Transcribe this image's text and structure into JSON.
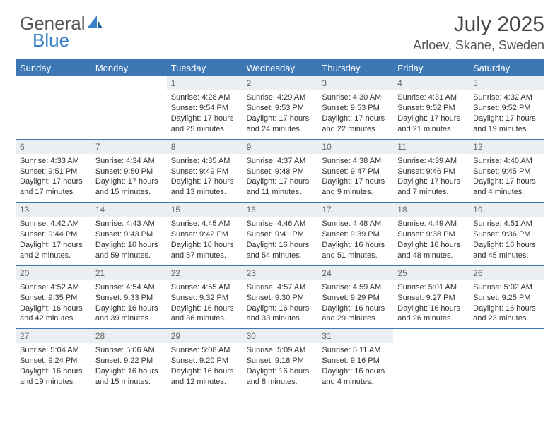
{
  "brand": {
    "word1": "General",
    "word2": "Blue"
  },
  "header": {
    "title": "July 2025",
    "location": "Arloev, Skane, Sweden"
  },
  "colors": {
    "blue": "#3e78b4",
    "logoBlue": "#3a7fc9",
    "dayNumBg": "#eceff1",
    "dayNumText": "#666666",
    "text": "#333333",
    "headerText": "#444444"
  },
  "dayLabels": [
    "Sunday",
    "Monday",
    "Tuesday",
    "Wednesday",
    "Thursday",
    "Friday",
    "Saturday"
  ],
  "grid": {
    "startCol": 2,
    "days": [
      {
        "n": "1",
        "sr": "4:28 AM",
        "ss": "9:54 PM",
        "dl": "17 hours and 25 minutes."
      },
      {
        "n": "2",
        "sr": "4:29 AM",
        "ss": "9:53 PM",
        "dl": "17 hours and 24 minutes."
      },
      {
        "n": "3",
        "sr": "4:30 AM",
        "ss": "9:53 PM",
        "dl": "17 hours and 22 minutes."
      },
      {
        "n": "4",
        "sr": "4:31 AM",
        "ss": "9:52 PM",
        "dl": "17 hours and 21 minutes."
      },
      {
        "n": "5",
        "sr": "4:32 AM",
        "ss": "9:52 PM",
        "dl": "17 hours and 19 minutes."
      },
      {
        "n": "6",
        "sr": "4:33 AM",
        "ss": "9:51 PM",
        "dl": "17 hours and 17 minutes."
      },
      {
        "n": "7",
        "sr": "4:34 AM",
        "ss": "9:50 PM",
        "dl": "17 hours and 15 minutes."
      },
      {
        "n": "8",
        "sr": "4:35 AM",
        "ss": "9:49 PM",
        "dl": "17 hours and 13 minutes."
      },
      {
        "n": "9",
        "sr": "4:37 AM",
        "ss": "9:48 PM",
        "dl": "17 hours and 11 minutes."
      },
      {
        "n": "10",
        "sr": "4:38 AM",
        "ss": "9:47 PM",
        "dl": "17 hours and 9 minutes."
      },
      {
        "n": "11",
        "sr": "4:39 AM",
        "ss": "9:46 PM",
        "dl": "17 hours and 7 minutes."
      },
      {
        "n": "12",
        "sr": "4:40 AM",
        "ss": "9:45 PM",
        "dl": "17 hours and 4 minutes."
      },
      {
        "n": "13",
        "sr": "4:42 AM",
        "ss": "9:44 PM",
        "dl": "17 hours and 2 minutes."
      },
      {
        "n": "14",
        "sr": "4:43 AM",
        "ss": "9:43 PM",
        "dl": "16 hours and 59 minutes."
      },
      {
        "n": "15",
        "sr": "4:45 AM",
        "ss": "9:42 PM",
        "dl": "16 hours and 57 minutes."
      },
      {
        "n": "16",
        "sr": "4:46 AM",
        "ss": "9:41 PM",
        "dl": "16 hours and 54 minutes."
      },
      {
        "n": "17",
        "sr": "4:48 AM",
        "ss": "9:39 PM",
        "dl": "16 hours and 51 minutes."
      },
      {
        "n": "18",
        "sr": "4:49 AM",
        "ss": "9:38 PM",
        "dl": "16 hours and 48 minutes."
      },
      {
        "n": "19",
        "sr": "4:51 AM",
        "ss": "9:36 PM",
        "dl": "16 hours and 45 minutes."
      },
      {
        "n": "20",
        "sr": "4:52 AM",
        "ss": "9:35 PM",
        "dl": "16 hours and 42 minutes."
      },
      {
        "n": "21",
        "sr": "4:54 AM",
        "ss": "9:33 PM",
        "dl": "16 hours and 39 minutes."
      },
      {
        "n": "22",
        "sr": "4:55 AM",
        "ss": "9:32 PM",
        "dl": "16 hours and 36 minutes."
      },
      {
        "n": "23",
        "sr": "4:57 AM",
        "ss": "9:30 PM",
        "dl": "16 hours and 33 minutes."
      },
      {
        "n": "24",
        "sr": "4:59 AM",
        "ss": "9:29 PM",
        "dl": "16 hours and 29 minutes."
      },
      {
        "n": "25",
        "sr": "5:01 AM",
        "ss": "9:27 PM",
        "dl": "16 hours and 26 minutes."
      },
      {
        "n": "26",
        "sr": "5:02 AM",
        "ss": "9:25 PM",
        "dl": "16 hours and 23 minutes."
      },
      {
        "n": "27",
        "sr": "5:04 AM",
        "ss": "9:24 PM",
        "dl": "16 hours and 19 minutes."
      },
      {
        "n": "28",
        "sr": "5:06 AM",
        "ss": "9:22 PM",
        "dl": "16 hours and 15 minutes."
      },
      {
        "n": "29",
        "sr": "5:08 AM",
        "ss": "9:20 PM",
        "dl": "16 hours and 12 minutes."
      },
      {
        "n": "30",
        "sr": "5:09 AM",
        "ss": "9:18 PM",
        "dl": "16 hours and 8 minutes."
      },
      {
        "n": "31",
        "sr": "5:11 AM",
        "ss": "9:16 PM",
        "dl": "16 hours and 4 minutes."
      }
    ]
  },
  "labels": {
    "sunrise": "Sunrise: ",
    "sunset": "Sunset: ",
    "daylight": "Daylight: "
  }
}
